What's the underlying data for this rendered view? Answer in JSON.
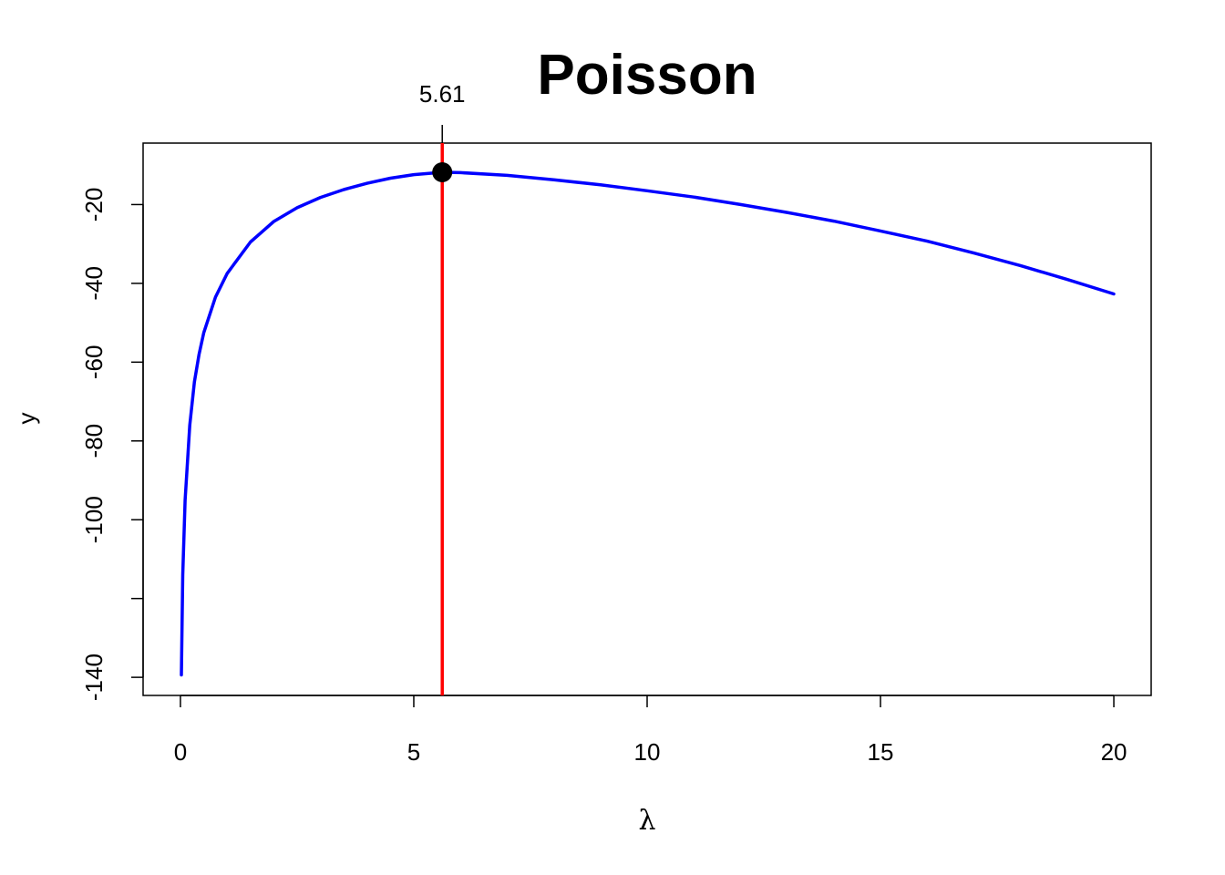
{
  "chart_data": {
    "type": "line",
    "title": "Poisson",
    "xlabel": "λ",
    "ylabel": "y",
    "xlim": [
      -0.8,
      20.8
    ],
    "ylim": [
      -144.6,
      -4.4
    ],
    "x_ticks": [
      0,
      5,
      10,
      15,
      20
    ],
    "x_tick_labels": [
      "0",
      "5",
      "10",
      "15",
      "20"
    ],
    "y_ticks": [
      -140,
      -120,
      -100,
      -80,
      -60,
      -40,
      -20
    ],
    "y_tick_labels": [
      "-140",
      "",
      "-100",
      "-80",
      "-60",
      "-40",
      "-20"
    ],
    "grid": false,
    "series": [
      {
        "color": "#0000ff",
        "x": [
          0.02,
          0.05,
          0.1,
          0.2,
          0.3,
          0.4,
          0.5,
          0.75,
          1,
          1.5,
          2,
          2.5,
          3,
          3.5,
          4,
          4.5,
          5,
          5.61,
          6,
          7,
          8,
          9,
          10,
          11,
          12,
          13,
          14,
          15,
          16,
          17,
          18,
          19,
          20
        ],
        "y": [
          -139.4,
          -114,
          -95,
          -76,
          -65,
          -58,
          -52.5,
          -43.5,
          -37.5,
          -29.5,
          -24.3,
          -20.8,
          -18.2,
          -16.2,
          -14.6,
          -13.3,
          -12.4,
          -11.8,
          -11.9,
          -12.6,
          -13.7,
          -15.0,
          -16.5,
          -18.1,
          -20.0,
          -22.0,
          -24.2,
          -26.7,
          -29.3,
          -32.3,
          -35.5,
          -39.0,
          -42.7
        ]
      }
    ],
    "vline": {
      "x": 5.61,
      "color": "#ff0000"
    },
    "max_point": {
      "x": 5.61,
      "y": -11.8,
      "label": "5.61"
    }
  }
}
